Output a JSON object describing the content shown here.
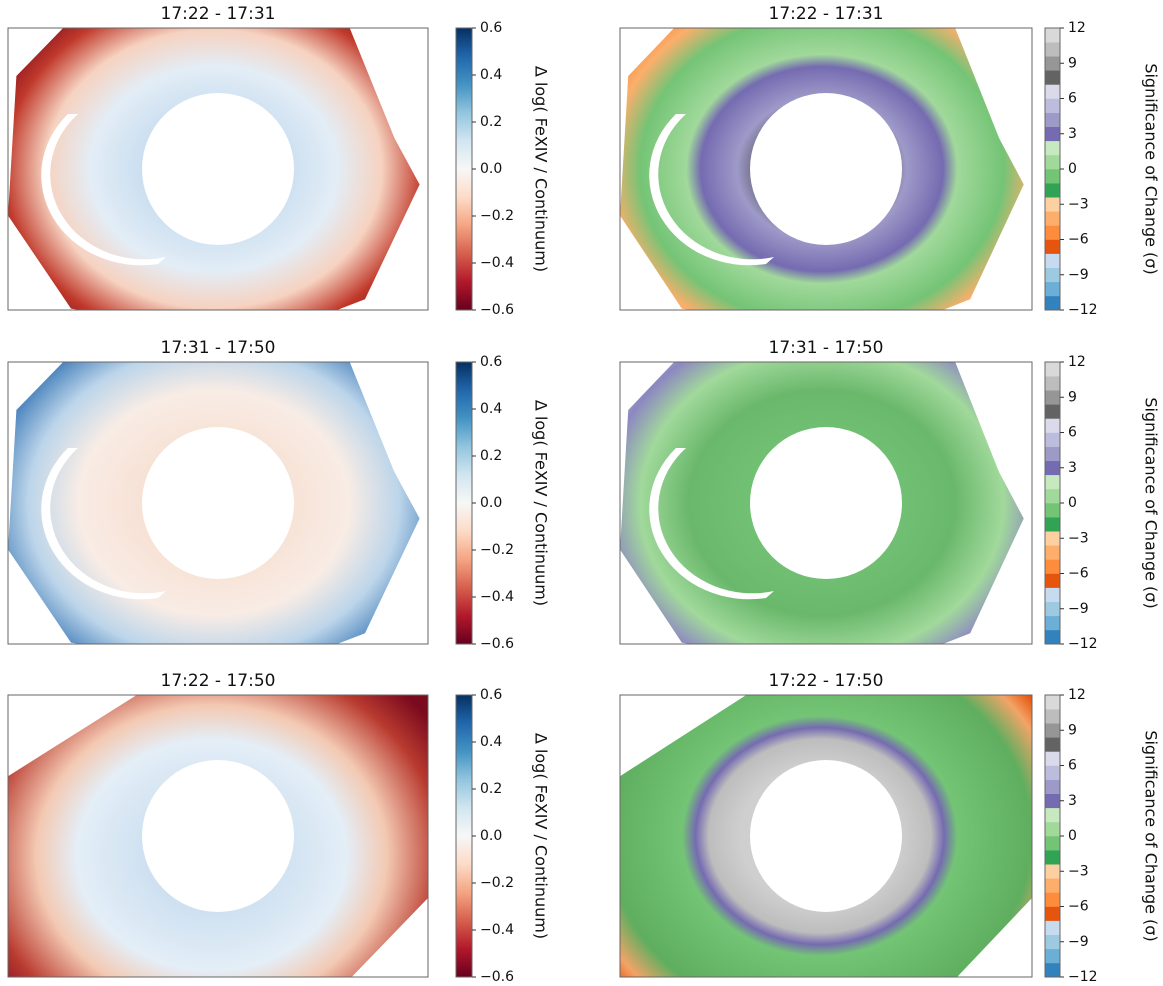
{
  "chart_data": [
    {
      "type": "image",
      "title": "17:22 - 17:31",
      "colorbar_label": "Δ log( FeXIV / Continuum)",
      "clim": [
        -0.6,
        0.6
      ],
      "cticks": [
        {
          "value": -0.6,
          "label": "−0.6"
        },
        {
          "value": -0.4,
          "label": "−0.4"
        },
        {
          "value": -0.2,
          "label": "−0.2"
        },
        {
          "value": 0,
          "label": "0.0"
        },
        0.2,
        0.4,
        0.6
      ],
      "colormap": "continuous",
      "colors": [
        "#67001f",
        "#b2182b",
        "#d6604d",
        "#f4a582",
        "#fddbc7",
        "#f7f7f7",
        "#d1e5f0",
        "#92c5de",
        "#4393c3",
        "#2166ac",
        "#053061"
      ]
    },
    {
      "type": "image",
      "title": "17:22 - 17:31",
      "colorbar_label": "Significance of Change (σ)",
      "clim": [
        -12,
        12
      ],
      "cticks": [
        {
          "value": -12,
          "label": "−12"
        },
        {
          "value": -9,
          "label": "−9"
        },
        {
          "value": -6,
          "label": "−6"
        },
        {
          "value": -3,
          "label": "−3"
        },
        0,
        3,
        6,
        9,
        12
      ],
      "colormap": "discrete",
      "colors": [
        "#3182bd",
        "#6baed6",
        "#9ecae1",
        "#c6dbef",
        "#e6550d",
        "#fd8d3c",
        "#fdae6b",
        "#fdd0a2",
        "#31a354",
        "#74c476",
        "#a1d99b",
        "#c7e9c0",
        "#756bb1",
        "#9e9ac8",
        "#bcbddc",
        "#dadaeb",
        "#636363",
        "#969696",
        "#bdbdbd",
        "#d9d9d9"
      ]
    },
    {
      "type": "image",
      "title": "17:31 - 17:50",
      "colorbar_label": "Δ log( FeXIV / Continuum)",
      "clim": [
        -0.6,
        0.6
      ],
      "cticks": [
        {
          "value": -0.6,
          "label": "−0.6"
        },
        {
          "value": -0.4,
          "label": "−0.4"
        },
        {
          "value": -0.2,
          "label": "−0.2"
        },
        {
          "value": 0,
          "label": "0.0"
        },
        0.2,
        0.4,
        0.6
      ],
      "colormap": "continuous",
      "colors": [
        "#67001f",
        "#b2182b",
        "#d6604d",
        "#f4a582",
        "#fddbc7",
        "#f7f7f7",
        "#d1e5f0",
        "#92c5de",
        "#4393c3",
        "#2166ac",
        "#053061"
      ]
    },
    {
      "type": "image",
      "title": "17:31 - 17:50",
      "colorbar_label": "Significance of Change (σ)",
      "clim": [
        -12,
        12
      ],
      "cticks": [
        {
          "value": -12,
          "label": "−12"
        },
        {
          "value": -9,
          "label": "−9"
        },
        {
          "value": -6,
          "label": "−6"
        },
        {
          "value": -3,
          "label": "−3"
        },
        0,
        3,
        6,
        9,
        12
      ],
      "colormap": "discrete",
      "colors": [
        "#3182bd",
        "#6baed6",
        "#9ecae1",
        "#c6dbef",
        "#e6550d",
        "#fd8d3c",
        "#fdae6b",
        "#fdd0a2",
        "#31a354",
        "#74c476",
        "#a1d99b",
        "#c7e9c0",
        "#756bb1",
        "#9e9ac8",
        "#bcbddc",
        "#dadaeb",
        "#636363",
        "#969696",
        "#bdbdbd",
        "#d9d9d9"
      ]
    },
    {
      "type": "image",
      "title": "17:22 - 17:50",
      "colorbar_label": "Δ log( FeXIV / Continuum)",
      "clim": [
        -0.6,
        0.6
      ],
      "cticks": [
        {
          "value": -0.6,
          "label": "−0.6"
        },
        {
          "value": -0.4,
          "label": "−0.4"
        },
        {
          "value": -0.2,
          "label": "−0.2"
        },
        {
          "value": 0,
          "label": "0.0"
        },
        0.2,
        0.4,
        0.6
      ],
      "colormap": "continuous",
      "colors": [
        "#67001f",
        "#b2182b",
        "#d6604d",
        "#f4a582",
        "#fddbc7",
        "#f7f7f7",
        "#d1e5f0",
        "#92c5de",
        "#4393c3",
        "#2166ac",
        "#053061"
      ]
    },
    {
      "type": "image",
      "title": "17:22 - 17:50",
      "colorbar_label": "Significance of Change (σ)",
      "clim": [
        -12,
        12
      ],
      "cticks": [
        {
          "value": -12,
          "label": "−12"
        },
        {
          "value": -9,
          "label": "−9"
        },
        {
          "value": -6,
          "label": "−6"
        },
        {
          "value": -3,
          "label": "−3"
        },
        0,
        3,
        6,
        9,
        12
      ],
      "colormap": "discrete",
      "colors": [
        "#3182bd",
        "#6baed6",
        "#9ecae1",
        "#c6dbef",
        "#e6550d",
        "#fd8d3c",
        "#fdae6b",
        "#fdd0a2",
        "#31a354",
        "#74c476",
        "#a1d99b",
        "#c7e9c0",
        "#756bb1",
        "#9e9ac8",
        "#bcbddc",
        "#dadaeb",
        "#636363",
        "#969696",
        "#bdbdbd",
        "#d9d9d9"
      ]
    }
  ]
}
